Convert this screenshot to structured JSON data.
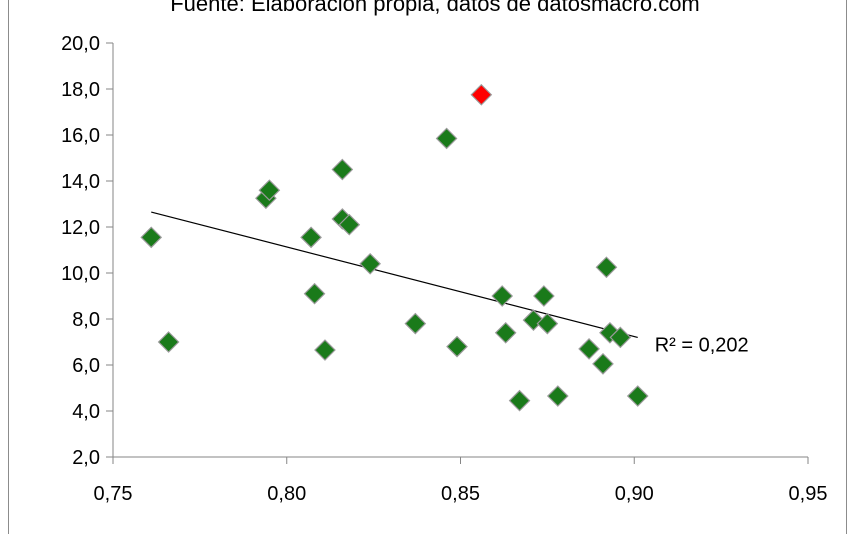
{
  "source_note": "Fuente: Elaboración propia, datos de datosmacro.com",
  "chart_data": {
    "type": "scatter",
    "title": "",
    "xlabel": "",
    "ylabel": "",
    "xlim": [
      0.75,
      0.95
    ],
    "ylim": [
      2.0,
      20.0
    ],
    "x_ticks": [
      0.75,
      0.8,
      0.85,
      0.9,
      0.95
    ],
    "x_tick_labels": [
      "0,75",
      "0,80",
      "0,85",
      "0,90",
      "0,95"
    ],
    "y_ticks": [
      2,
      4,
      6,
      8,
      10,
      12,
      14,
      16,
      18,
      20
    ],
    "y_tick_labels": [
      "2,0",
      "4,0",
      "6,0",
      "8,0",
      "10,0",
      "12,0",
      "14,0",
      "16,0",
      "18,0",
      "20,0"
    ],
    "grid": false,
    "marker": "diamond",
    "marker_color": "#1a7a1a",
    "highlight_color": "#ff0000",
    "points": [
      {
        "x": 0.761,
        "y": 11.55
      },
      {
        "x": 0.766,
        "y": 7.0
      },
      {
        "x": 0.794,
        "y": 13.25
      },
      {
        "x": 0.795,
        "y": 13.6
      },
      {
        "x": 0.807,
        "y": 11.55
      },
      {
        "x": 0.808,
        "y": 9.1
      },
      {
        "x": 0.811,
        "y": 6.65
      },
      {
        "x": 0.816,
        "y": 12.35
      },
      {
        "x": 0.816,
        "y": 14.5
      },
      {
        "x": 0.818,
        "y": 12.1
      },
      {
        "x": 0.824,
        "y": 10.4
      },
      {
        "x": 0.837,
        "y": 7.8
      },
      {
        "x": 0.846,
        "y": 15.85
      },
      {
        "x": 0.849,
        "y": 6.8
      },
      {
        "x": 0.856,
        "y": 17.75,
        "highlight": true
      },
      {
        "x": 0.862,
        "y": 9.0
      },
      {
        "x": 0.863,
        "y": 7.4
      },
      {
        "x": 0.867,
        "y": 4.45
      },
      {
        "x": 0.871,
        "y": 7.95
      },
      {
        "x": 0.874,
        "y": 9.0
      },
      {
        "x": 0.875,
        "y": 7.8
      },
      {
        "x": 0.878,
        "y": 4.65
      },
      {
        "x": 0.887,
        "y": 6.7
      },
      {
        "x": 0.891,
        "y": 6.05
      },
      {
        "x": 0.892,
        "y": 10.25
      },
      {
        "x": 0.893,
        "y": 7.4
      },
      {
        "x": 0.896,
        "y": 7.2
      },
      {
        "x": 0.901,
        "y": 4.65
      }
    ],
    "trendline": {
      "type": "linear",
      "from": {
        "x": 0.761,
        "y": 12.65
      },
      "to": {
        "x": 0.901,
        "y": 7.2
      },
      "r2_label": "R² = 0,202"
    }
  }
}
